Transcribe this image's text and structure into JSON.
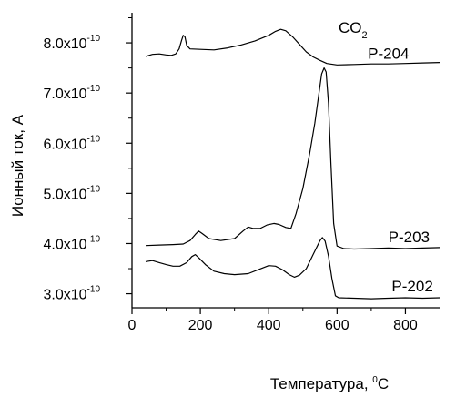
{
  "chart_data": {
    "type": "line",
    "annotation": {
      "main": "CO",
      "sub": "2"
    },
    "xlabel": {
      "main": "Температура, ",
      "sup": "0",
      "tail": "С"
    },
    "ylabel": "Ионный ток, А",
    "xlim": [
      0,
      900
    ],
    "ylim": [
      2.72e-10,
      8.6e-10
    ],
    "grid": false,
    "x_ticks": [
      {
        "value": 0,
        "label": "0"
      },
      {
        "value": 200,
        "label": "200"
      },
      {
        "value": 400,
        "label": "400"
      },
      {
        "value": 600,
        "label": "600"
      },
      {
        "value": 800,
        "label": "800"
      }
    ],
    "y_ticks": [
      {
        "value": 3e-10,
        "mant": "3.0x10",
        "exp": "-10"
      },
      {
        "value": 4e-10,
        "mant": "4.0x10",
        "exp": "-10"
      },
      {
        "value": 5e-10,
        "mant": "5.0x10",
        "exp": "-10"
      },
      {
        "value": 6e-10,
        "mant": "6.0x10",
        "exp": "-10"
      },
      {
        "value": 7e-10,
        "mant": "7.0x10",
        "exp": "-10"
      },
      {
        "value": 8e-10,
        "mant": "8.0x10",
        "exp": "-10"
      }
    ],
    "series": [
      {
        "name": "P-204",
        "label_at": [
          690,
          7.61e-10
        ],
        "points": [
          [
            40,
            7.73e-10
          ],
          [
            60,
            7.77e-10
          ],
          [
            80,
            7.78e-10
          ],
          [
            100,
            7.76e-10
          ],
          [
            115,
            7.75e-10
          ],
          [
            128,
            7.78e-10
          ],
          [
            138,
            7.88e-10
          ],
          [
            145,
            8.05e-10
          ],
          [
            150,
            8.15e-10
          ],
          [
            155,
            8.12e-10
          ],
          [
            160,
            7.95e-10
          ],
          [
            170,
            7.88e-10
          ],
          [
            200,
            7.87e-10
          ],
          [
            240,
            7.86e-10
          ],
          [
            280,
            7.9e-10
          ],
          [
            320,
            7.96e-10
          ],
          [
            360,
            8.04e-10
          ],
          [
            400,
            8.15e-10
          ],
          [
            420,
            8.23e-10
          ],
          [
            435,
            8.27e-10
          ],
          [
            450,
            8.24e-10
          ],
          [
            470,
            8.12e-10
          ],
          [
            490,
            7.97e-10
          ],
          [
            510,
            7.82e-10
          ],
          [
            530,
            7.72e-10
          ],
          [
            550,
            7.65e-10
          ],
          [
            570,
            7.59e-10
          ],
          [
            600,
            7.56e-10
          ],
          [
            650,
            7.57e-10
          ],
          [
            700,
            7.58e-10
          ],
          [
            750,
            7.58e-10
          ],
          [
            800,
            7.59e-10
          ],
          [
            850,
            7.6e-10
          ],
          [
            900,
            7.61e-10
          ]
        ]
      },
      {
        "name": "P-203",
        "label_at": [
          750,
          3.95e-10
        ],
        "points": [
          [
            40,
            3.96e-10
          ],
          [
            80,
            3.97e-10
          ],
          [
            120,
            3.98e-10
          ],
          [
            150,
            3.99e-10
          ],
          [
            170,
            4.06e-10
          ],
          [
            185,
            4.18e-10
          ],
          [
            195,
            4.25e-10
          ],
          [
            205,
            4.2e-10
          ],
          [
            225,
            4.1e-10
          ],
          [
            260,
            4.06e-10
          ],
          [
            300,
            4.1e-10
          ],
          [
            325,
            4.25e-10
          ],
          [
            340,
            4.33e-10
          ],
          [
            355,
            4.3e-10
          ],
          [
            375,
            4.3e-10
          ],
          [
            395,
            4.37e-10
          ],
          [
            415,
            4.4e-10
          ],
          [
            430,
            4.38e-10
          ],
          [
            450,
            4.32e-10
          ],
          [
            465,
            4.3e-10
          ],
          [
            480,
            4.6e-10
          ],
          [
            500,
            5.1e-10
          ],
          [
            520,
            5.8e-10
          ],
          [
            535,
            6.4e-10
          ],
          [
            545,
            6.9e-10
          ],
          [
            555,
            7.38e-10
          ],
          [
            562,
            7.5e-10
          ],
          [
            568,
            7.42e-10
          ],
          [
            575,
            6.8e-10
          ],
          [
            582,
            5.6e-10
          ],
          [
            590,
            4.4e-10
          ],
          [
            600,
            3.95e-10
          ],
          [
            620,
            3.9e-10
          ],
          [
            650,
            3.89e-10
          ],
          [
            700,
            3.9e-10
          ],
          [
            750,
            3.91e-10
          ],
          [
            800,
            3.9e-10
          ],
          [
            850,
            3.91e-10
          ],
          [
            900,
            3.92e-10
          ]
        ]
      },
      {
        "name": "P-202",
        "label_at": [
          760,
          2.97e-10
        ],
        "points": [
          [
            40,
            3.64e-10
          ],
          [
            60,
            3.66e-10
          ],
          [
            80,
            3.62e-10
          ],
          [
            100,
            3.58e-10
          ],
          [
            120,
            3.55e-10
          ],
          [
            140,
            3.55e-10
          ],
          [
            160,
            3.62e-10
          ],
          [
            175,
            3.74e-10
          ],
          [
            185,
            3.78e-10
          ],
          [
            195,
            3.72e-10
          ],
          [
            215,
            3.58e-10
          ],
          [
            240,
            3.45e-10
          ],
          [
            270,
            3.4e-10
          ],
          [
            300,
            3.38e-10
          ],
          [
            340,
            3.4e-10
          ],
          [
            370,
            3.48e-10
          ],
          [
            400,
            3.56e-10
          ],
          [
            420,
            3.55e-10
          ],
          [
            440,
            3.48e-10
          ],
          [
            460,
            3.38e-10
          ],
          [
            475,
            3.33e-10
          ],
          [
            490,
            3.37e-10
          ],
          [
            510,
            3.5e-10
          ],
          [
            530,
            3.78e-10
          ],
          [
            550,
            4.06e-10
          ],
          [
            557,
            4.12e-10
          ],
          [
            565,
            4.05e-10
          ],
          [
            575,
            3.75e-10
          ],
          [
            585,
            3.3e-10
          ],
          [
            595,
            2.96e-10
          ],
          [
            605,
            2.92e-10
          ],
          [
            650,
            2.91e-10
          ],
          [
            700,
            2.9e-10
          ],
          [
            750,
            2.91e-10
          ],
          [
            800,
            2.92e-10
          ],
          [
            850,
            2.91e-10
          ],
          [
            900,
            2.92e-10
          ]
        ]
      }
    ]
  }
}
